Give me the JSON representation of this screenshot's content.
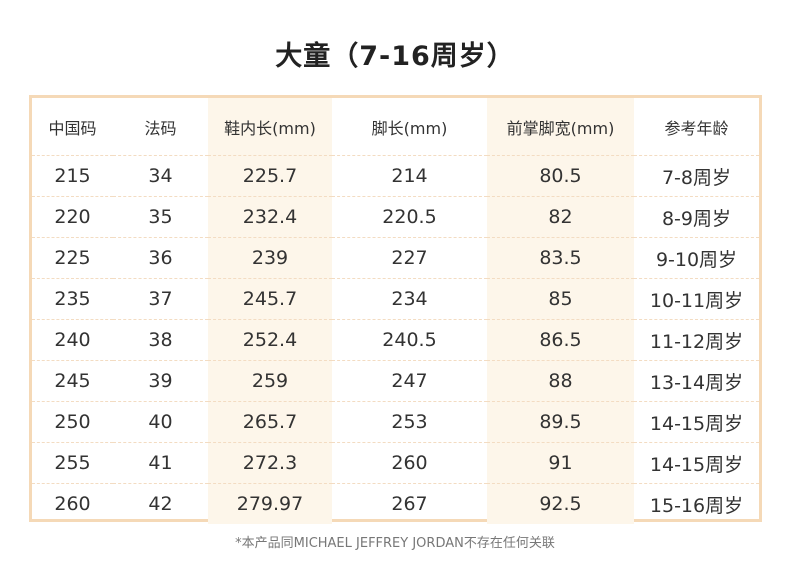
{
  "title": "大童（7-16周岁）",
  "table": {
    "headers": [
      "中国码",
      "法码",
      "鞋内长(mm)",
      "脚长(mm)",
      "前掌脚宽(mm)",
      "参考年龄"
    ],
    "rows": [
      [
        "215",
        "34",
        "225.7",
        "214",
        "80.5",
        "7-8周岁"
      ],
      [
        "220",
        "35",
        "232.4",
        "220.5",
        "82",
        "8-9周岁"
      ],
      [
        "225",
        "36",
        "239",
        "227",
        "83.5",
        "9-10周岁"
      ],
      [
        "235",
        "37",
        "245.7",
        "234",
        "85",
        "10-11周岁"
      ],
      [
        "240",
        "38",
        "252.4",
        "240.5",
        "86.5",
        "11-12周岁"
      ],
      [
        "245",
        "39",
        "259",
        "247",
        "88",
        "13-14周岁"
      ],
      [
        "250",
        "40",
        "265.7",
        "253",
        "89.5",
        "14-15周岁"
      ],
      [
        "255",
        "41",
        "272.3",
        "260",
        "91",
        "14-15周岁"
      ],
      [
        "260",
        "42",
        "279.97",
        "267",
        "92.5",
        "15-16周岁"
      ]
    ]
  },
  "footnote": "*本产品同MICHAEL JEFFREY JORDAN不存在任何关联",
  "colors": {
    "border": "#f5d9b7",
    "shaded_column": "#fdf6ea",
    "text": "#333333"
  }
}
